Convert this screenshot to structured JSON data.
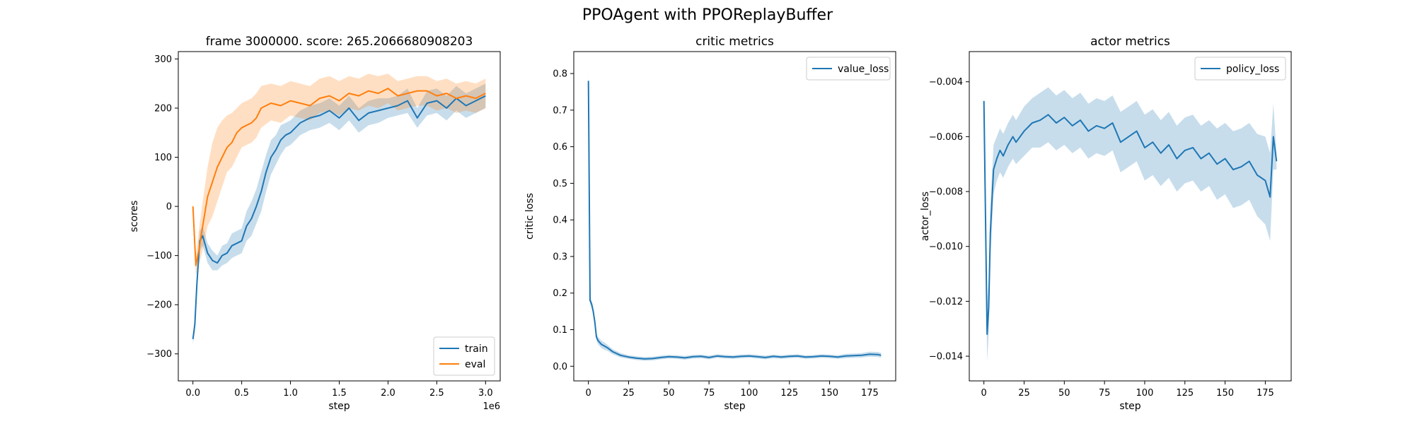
{
  "figure": {
    "title": "PPOAgent with PPOReplayBuffer"
  },
  "chart_data": [
    {
      "type": "line",
      "title": "frame 3000000. score: 265.2066680908203",
      "xlabel": "step",
      "ylabel": "scores",
      "x_offset_label": "1e6",
      "xlim": [
        -0.15,
        3.15
      ],
      "ylim": [
        -355,
        315
      ],
      "xticks": [
        0.0,
        0.5,
        1.0,
        1.5,
        2.0,
        2.5,
        3.0
      ],
      "xtick_labels": [
        "0.0",
        "0.5",
        "1.0",
        "1.5",
        "2.0",
        "2.5",
        "3.0"
      ],
      "yticks": [
        -300,
        -200,
        -100,
        0,
        100,
        200,
        300
      ],
      "ytick_labels": [
        "−300",
        "−200",
        "−100",
        "0",
        "100",
        "200",
        "300"
      ],
      "legend": "lower-right",
      "grid": false,
      "series": [
        {
          "name": "train",
          "color": "#1f77b4",
          "x": [
            0.0,
            0.02,
            0.04,
            0.07,
            0.1,
            0.15,
            0.2,
            0.25,
            0.3,
            0.35,
            0.4,
            0.45,
            0.5,
            0.55,
            0.6,
            0.65,
            0.7,
            0.75,
            0.8,
            0.85,
            0.9,
            0.95,
            1.0,
            1.05,
            1.1,
            1.15,
            1.2,
            1.3,
            1.4,
            1.5,
            1.6,
            1.7,
            1.8,
            1.9,
            2.0,
            2.1,
            2.2,
            2.3,
            2.4,
            2.5,
            2.6,
            2.7,
            2.8,
            2.9,
            3.0
          ],
          "y": [
            -270,
            -240,
            -160,
            -70,
            -60,
            -95,
            -110,
            -115,
            -100,
            -95,
            -80,
            -75,
            -70,
            -40,
            -25,
            0,
            30,
            70,
            100,
            115,
            135,
            145,
            150,
            160,
            170,
            175,
            180,
            185,
            195,
            180,
            200,
            175,
            190,
            195,
            200,
            205,
            215,
            180,
            210,
            215,
            200,
            220,
            205,
            215,
            225
          ],
          "lower": [
            -280,
            -255,
            -180,
            -90,
            -80,
            -115,
            -130,
            -130,
            -120,
            -115,
            -105,
            -100,
            -95,
            -70,
            -60,
            -35,
            -10,
            30,
            65,
            85,
            105,
            120,
            125,
            135,
            145,
            150,
            155,
            160,
            170,
            155,
            175,
            150,
            165,
            170,
            180,
            185,
            190,
            160,
            185,
            190,
            175,
            195,
            180,
            190,
            200
          ],
          "upper": [
            -260,
            -225,
            -140,
            -50,
            -40,
            -75,
            -90,
            -100,
            -80,
            -75,
            -55,
            -50,
            -45,
            -10,
            10,
            35,
            70,
            105,
            135,
            145,
            165,
            170,
            175,
            185,
            195,
            200,
            205,
            210,
            220,
            205,
            225,
            200,
            215,
            220,
            220,
            225,
            240,
            200,
            235,
            240,
            225,
            245,
            230,
            240,
            250
          ]
        },
        {
          "name": "eval",
          "color": "#ff7f0e",
          "x": [
            0.0,
            0.03,
            0.06,
            0.1,
            0.15,
            0.2,
            0.25,
            0.3,
            0.35,
            0.4,
            0.45,
            0.5,
            0.55,
            0.6,
            0.65,
            0.7,
            0.8,
            0.9,
            1.0,
            1.1,
            1.2,
            1.3,
            1.4,
            1.5,
            1.6,
            1.7,
            1.8,
            1.9,
            2.0,
            2.1,
            2.2,
            2.3,
            2.4,
            2.5,
            2.6,
            2.7,
            2.8,
            2.9,
            3.0
          ],
          "y": [
            0,
            -120,
            -90,
            -40,
            20,
            50,
            80,
            100,
            120,
            130,
            150,
            160,
            165,
            170,
            180,
            200,
            210,
            205,
            215,
            210,
            205,
            220,
            225,
            215,
            230,
            225,
            235,
            230,
            240,
            225,
            230,
            235,
            235,
            225,
            230,
            220,
            225,
            220,
            230
          ],
          "lower": [
            -10,
            -140,
            -120,
            -90,
            -40,
            -20,
            10,
            40,
            70,
            80,
            100,
            120,
            125,
            130,
            140,
            160,
            175,
            170,
            185,
            180,
            175,
            190,
            195,
            185,
            200,
            195,
            205,
            200,
            210,
            195,
            200,
            205,
            205,
            195,
            200,
            190,
            195,
            190,
            200
          ],
          "upper": [
            10,
            -100,
            -50,
            10,
            80,
            130,
            160,
            175,
            185,
            190,
            200,
            210,
            215,
            220,
            230,
            245,
            250,
            245,
            255,
            250,
            245,
            260,
            265,
            255,
            265,
            260,
            270,
            265,
            270,
            255,
            260,
            265,
            265,
            255,
            260,
            250,
            255,
            250,
            260
          ]
        }
      ]
    },
    {
      "type": "line",
      "title": "critic metrics",
      "xlabel": "step",
      "ylabel": "critic loss",
      "xlim": [
        -9.1,
        191.1
      ],
      "ylim": [
        -0.04,
        0.86
      ],
      "xticks": [
        0,
        25,
        50,
        75,
        100,
        125,
        150,
        175
      ],
      "xtick_labels": [
        "0",
        "25",
        "50",
        "75",
        "100",
        "125",
        "150",
        "175"
      ],
      "yticks": [
        0.0,
        0.1,
        0.2,
        0.3,
        0.4,
        0.5,
        0.6,
        0.7,
        0.8
      ],
      "ytick_labels": [
        "0.0",
        "0.1",
        "0.2",
        "0.3",
        "0.4",
        "0.5",
        "0.6",
        "0.7",
        "0.8"
      ],
      "legend": "top-right",
      "grid": false,
      "series": [
        {
          "name": "value_loss",
          "color": "#1f77b4",
          "x": [
            0,
            1,
            2,
            3,
            4,
            5,
            6,
            8,
            10,
            12,
            15,
            20,
            25,
            30,
            35,
            40,
            45,
            50,
            55,
            60,
            65,
            70,
            75,
            80,
            85,
            90,
            95,
            100,
            105,
            110,
            115,
            120,
            125,
            130,
            135,
            140,
            145,
            150,
            155,
            160,
            165,
            170,
            175,
            180,
            182
          ],
          "y": [
            0.78,
            0.18,
            0.17,
            0.15,
            0.12,
            0.08,
            0.07,
            0.06,
            0.055,
            0.05,
            0.04,
            0.03,
            0.025,
            0.022,
            0.02,
            0.021,
            0.024,
            0.026,
            0.025,
            0.023,
            0.026,
            0.027,
            0.024,
            0.028,
            0.026,
            0.025,
            0.027,
            0.028,
            0.026,
            0.024,
            0.027,
            0.025,
            0.027,
            0.028,
            0.025,
            0.026,
            0.028,
            0.027,
            0.025,
            0.028,
            0.029,
            0.03,
            0.033,
            0.032,
            0.03
          ],
          "lower": [
            0.74,
            0.17,
            0.16,
            0.14,
            0.11,
            0.07,
            0.06,
            0.05,
            0.045,
            0.042,
            0.033,
            0.024,
            0.02,
            0.017,
            0.015,
            0.016,
            0.019,
            0.021,
            0.02,
            0.018,
            0.021,
            0.022,
            0.019,
            0.023,
            0.021,
            0.02,
            0.022,
            0.023,
            0.021,
            0.019,
            0.022,
            0.02,
            0.022,
            0.023,
            0.02,
            0.021,
            0.023,
            0.022,
            0.02,
            0.022,
            0.023,
            0.024,
            0.026,
            0.025,
            0.023
          ],
          "upper": [
            0.82,
            0.19,
            0.18,
            0.16,
            0.13,
            0.09,
            0.08,
            0.07,
            0.065,
            0.058,
            0.047,
            0.036,
            0.03,
            0.027,
            0.025,
            0.026,
            0.029,
            0.031,
            0.03,
            0.028,
            0.031,
            0.032,
            0.029,
            0.033,
            0.031,
            0.03,
            0.032,
            0.033,
            0.031,
            0.029,
            0.032,
            0.03,
            0.032,
            0.033,
            0.03,
            0.031,
            0.033,
            0.032,
            0.03,
            0.034,
            0.035,
            0.036,
            0.04,
            0.039,
            0.037
          ]
        }
      ]
    },
    {
      "type": "line",
      "title": "actor metrics",
      "xlabel": "step",
      "ylabel": "actor_loss",
      "xlim": [
        -9.1,
        191.1
      ],
      "ylim": [
        -0.0149,
        -0.0029
      ],
      "xticks": [
        0,
        25,
        50,
        75,
        100,
        125,
        150,
        175
      ],
      "xtick_labels": [
        "0",
        "25",
        "50",
        "75",
        "100",
        "125",
        "150",
        "175"
      ],
      "yticks": [
        -0.014,
        -0.012,
        -0.01,
        -0.008,
        -0.006,
        -0.004
      ],
      "ytick_labels": [
        "−0.014",
        "−0.012",
        "−0.010",
        "−0.008",
        "−0.006",
        "−0.004"
      ],
      "legend": "top-right",
      "grid": false,
      "series": [
        {
          "name": "policy_loss",
          "color": "#1f77b4",
          "x": [
            0,
            2,
            3,
            4,
            6,
            8,
            10,
            12,
            15,
            18,
            20,
            25,
            30,
            35,
            40,
            45,
            50,
            55,
            60,
            65,
            70,
            75,
            80,
            85,
            90,
            95,
            100,
            105,
            110,
            115,
            120,
            125,
            130,
            135,
            140,
            145,
            150,
            155,
            160,
            165,
            170,
            175,
            178,
            180,
            182
          ],
          "y": [
            -0.0047,
            -0.0132,
            -0.0122,
            -0.0095,
            -0.0072,
            -0.0068,
            -0.0065,
            -0.0067,
            -0.0063,
            -0.006,
            -0.0062,
            -0.0058,
            -0.0055,
            -0.0054,
            -0.0052,
            -0.0055,
            -0.0053,
            -0.0056,
            -0.0054,
            -0.0058,
            -0.0056,
            -0.0057,
            -0.0055,
            -0.0062,
            -0.006,
            -0.0058,
            -0.0064,
            -0.0062,
            -0.0066,
            -0.0063,
            -0.0068,
            -0.0065,
            -0.0064,
            -0.0068,
            -0.0066,
            -0.007,
            -0.0068,
            -0.0072,
            -0.0071,
            -0.0069,
            -0.0074,
            -0.0076,
            -0.0082,
            -0.006,
            -0.0069
          ],
          "lower": [
            -0.0049,
            -0.0142,
            -0.0132,
            -0.0105,
            -0.0081,
            -0.0076,
            -0.0073,
            -0.0075,
            -0.0071,
            -0.0068,
            -0.007,
            -0.0067,
            -0.0064,
            -0.0064,
            -0.0062,
            -0.0065,
            -0.0063,
            -0.0066,
            -0.0064,
            -0.0068,
            -0.0066,
            -0.0067,
            -0.0065,
            -0.0073,
            -0.0071,
            -0.0069,
            -0.0076,
            -0.0074,
            -0.0078,
            -0.0075,
            -0.008,
            -0.0077,
            -0.0076,
            -0.008,
            -0.0078,
            -0.0083,
            -0.0081,
            -0.0086,
            -0.0085,
            -0.0083,
            -0.0089,
            -0.0092,
            -0.0098,
            -0.0072,
            -0.0072
          ],
          "upper": [
            -0.0045,
            -0.0122,
            -0.0112,
            -0.0085,
            -0.0063,
            -0.006,
            -0.0057,
            -0.0059,
            -0.0055,
            -0.0052,
            -0.0054,
            -0.0049,
            -0.0046,
            -0.0044,
            -0.0042,
            -0.0045,
            -0.0043,
            -0.0046,
            -0.0044,
            -0.0048,
            -0.0046,
            -0.0047,
            -0.0045,
            -0.0051,
            -0.0049,
            -0.0047,
            -0.0052,
            -0.005,
            -0.0054,
            -0.0051,
            -0.0056,
            -0.0053,
            -0.0052,
            -0.0056,
            -0.0054,
            -0.0057,
            -0.0055,
            -0.0058,
            -0.0057,
            -0.0055,
            -0.0059,
            -0.006,
            -0.0066,
            -0.0048,
            -0.0066
          ]
        }
      ]
    }
  ]
}
